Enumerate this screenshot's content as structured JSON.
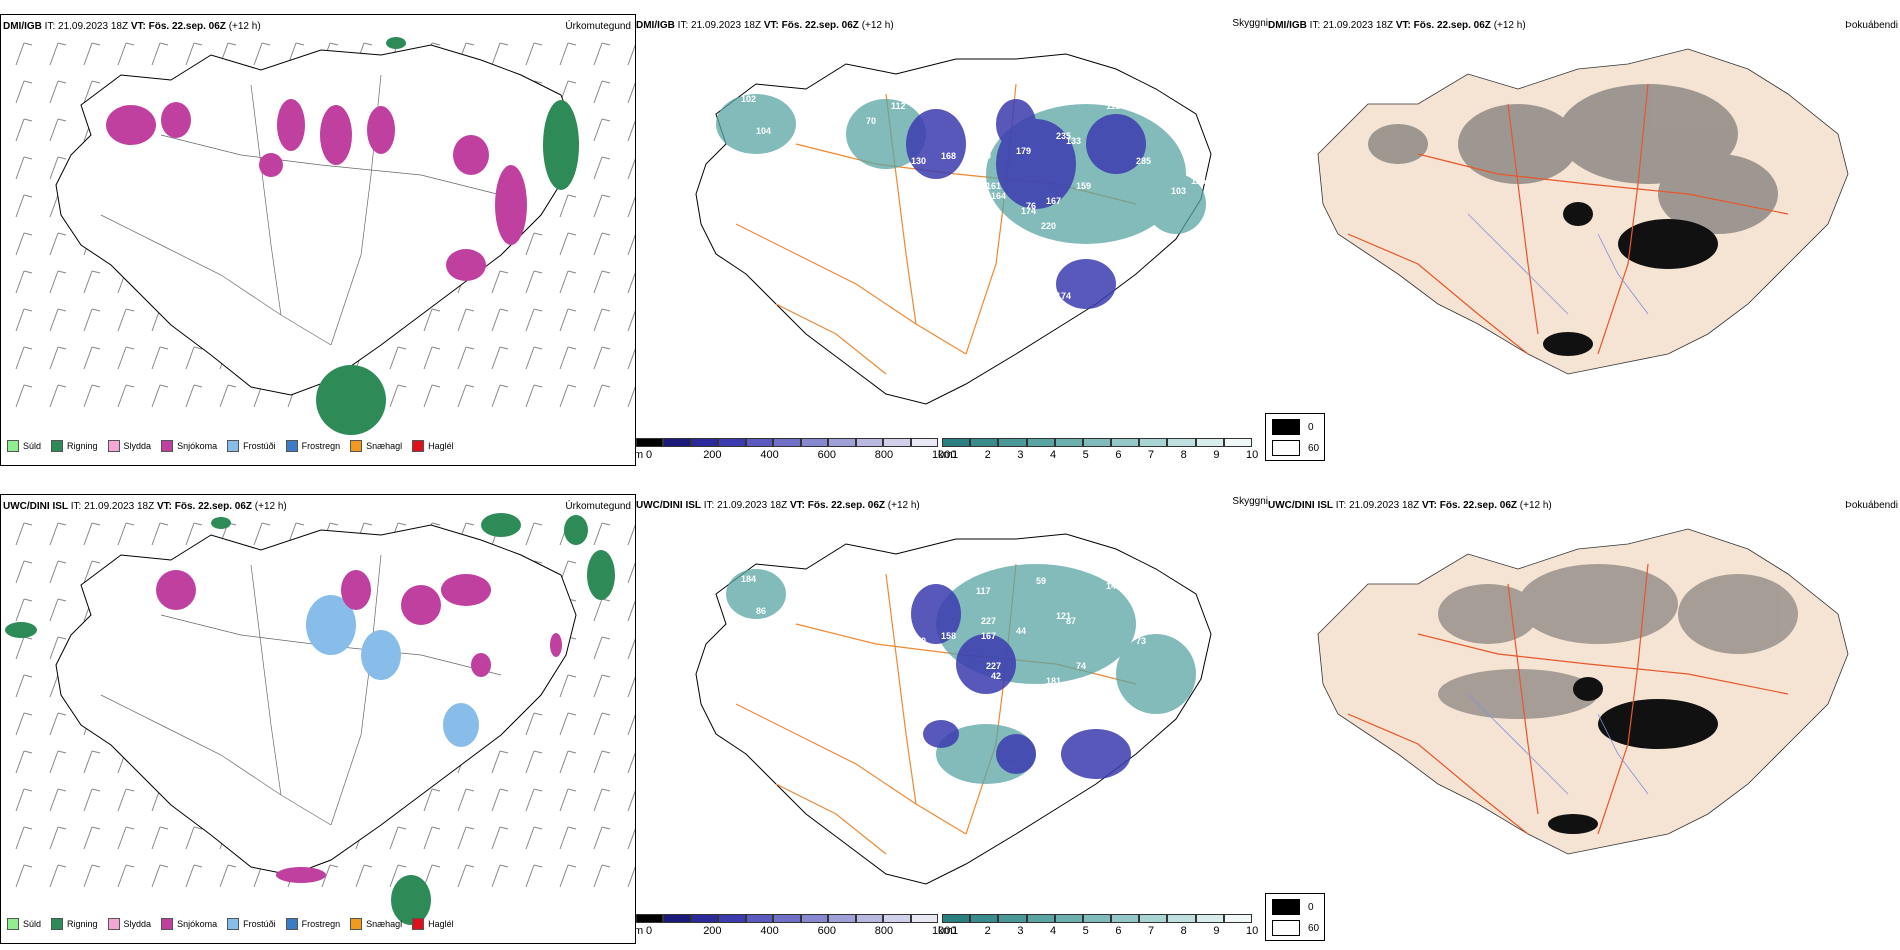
{
  "rows": [
    {
      "model": "DMI/IGB",
      "it": "IT: 21.09.2023 18Z",
      "vt_label": "VT:",
      "vt": "Fös. 22.sep. 06Z",
      "offset": "(+12 h)",
      "precip_title": "Úrkomutegund",
      "cloud_title": "Skyggni",
      "fog_title": "Þokuábendi",
      "cloud_labels": [
        "102",
        "123",
        "104",
        "70",
        "112",
        "153",
        "130",
        "168",
        "157",
        "85",
        "113",
        "99",
        "99",
        "179",
        "133",
        "285",
        "235",
        "159",
        "161",
        "167",
        "174",
        "220",
        "164",
        "130",
        "100",
        "114",
        "297",
        "174",
        "76",
        "103",
        "125"
      ]
    },
    {
      "model": "UWC/DINI ISL",
      "it": "IT: 21.09.2023 18Z",
      "vt_label": "VT:",
      "vt": "Fös. 22.sep. 06Z",
      "offset": "(+12 h)",
      "precip_title": "Úrkomutegund",
      "cloud_title": "Skyggni",
      "fog_title": "Þokuábendi",
      "cloud_labels": [
        "184",
        "100",
        "86",
        "88",
        "135",
        "120",
        "170",
        "158",
        "117",
        "59",
        "141",
        "227",
        "167",
        "44",
        "87",
        "73",
        "121",
        "74",
        "227",
        "181",
        "129",
        "108",
        "42"
      ]
    }
  ],
  "precip_legend": [
    {
      "label": "Súld",
      "color": "#90ee90"
    },
    {
      "label": "Rigning",
      "color": "#2e8b57"
    },
    {
      "label": "Slydda",
      "color": "#f4a6d7"
    },
    {
      "label": "Snjókoma",
      "color": "#c040a0"
    },
    {
      "label": "Frostúði",
      "color": "#87bde8"
    },
    {
      "label": "Frostregn",
      "color": "#3a7cc8"
    },
    {
      "label": "Snæhagl",
      "color": "#f39a1e"
    },
    {
      "label": "Haglél",
      "color": "#e0101a"
    }
  ],
  "cloudbase_bar": {
    "unit": "m",
    "ticks": [
      "0",
      "200",
      "400",
      "600",
      "800",
      "1000"
    ],
    "colors": [
      "#000000",
      "#1a1a7a",
      "#2a2a9a",
      "#3c3cb0",
      "#5a5ac0",
      "#7070c8",
      "#8888d0",
      "#a0a0d8",
      "#b8b8e0",
      "#d0d0ea",
      "#e8e8f4"
    ]
  },
  "visibility_bar": {
    "unit": "km",
    "ticks": [
      "1",
      "2",
      "3",
      "4",
      "5",
      "6",
      "7",
      "8",
      "9",
      "10"
    ],
    "colors": [
      "#2a8080",
      "#3a8c8c",
      "#4a9898",
      "#5aa4a4",
      "#6cb0b0",
      "#80bcbc",
      "#94c8c8",
      "#a8d4d4",
      "#c0e0e0",
      "#d8ecec",
      "#f0f8f8"
    ]
  },
  "fog_legend": {
    "high": "0",
    "low": "60",
    "high_color": "#000000",
    "low_color": "#ffffff"
  },
  "colors": {
    "land": "#f5e3d3",
    "road": "#e8562a",
    "river": "#8090e0",
    "coast": "#000000",
    "route": "#ee8833"
  }
}
